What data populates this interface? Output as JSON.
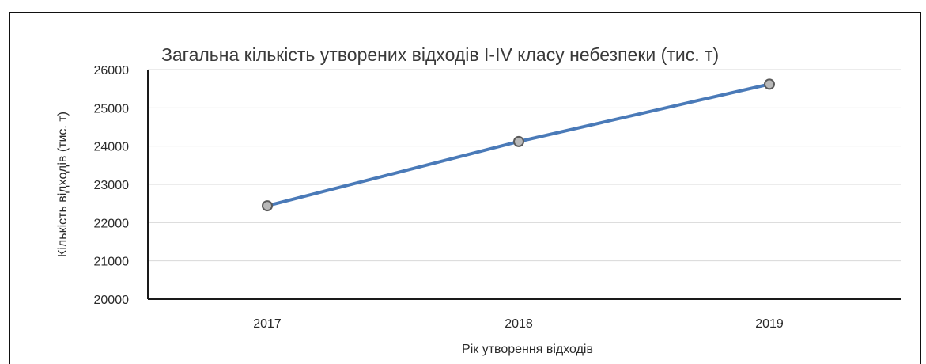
{
  "chart_data": {
    "type": "line",
    "title": "Загальна кількість утворених відходів I-IV класу небезпеки (тис. т)",
    "xlabel": "Рік утворення відходів",
    "ylabel": "Кількість відходів (тис. т)",
    "categories": [
      "2017",
      "2018",
      "2019"
    ],
    "series": [
      {
        "values": [
          22440,
          24120,
          25620
        ]
      }
    ],
    "ylim": [
      20000,
      26000
    ],
    "yticks": [
      "20000",
      "21000",
      "22000",
      "23000",
      "24000",
      "25000",
      "26000"
    ],
    "grid": true,
    "legend": "none",
    "colors": {
      "line": "#4a7ab8",
      "marker_fill": "#b8b8b8",
      "marker_stroke": "#5a5a5a",
      "grid": "#d8d8d8",
      "axis": "#1a1a1a"
    }
  }
}
